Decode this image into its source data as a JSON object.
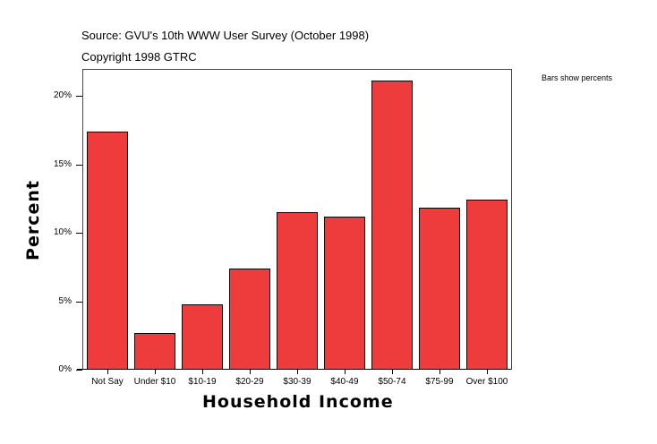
{
  "header": {
    "source": "Source: GVU's 10th WWW User Survey (October 1998)",
    "copyright": "Copyright 1998 GTRC",
    "note": "Bars show percents"
  },
  "colors": {
    "bar": "#ee3b3b",
    "bar_border": "#000000",
    "frame": "#444444"
  },
  "chart_data": {
    "type": "bar",
    "title": "Source: GVU's 10th WWW User Survey (October 1998)",
    "subtitle": "Copyright 1998 GTRC",
    "annotation": "Bars show percents",
    "xlabel": "Household Income",
    "ylabel": "Percent",
    "categories": [
      "Not Say",
      "Under $10",
      "$10-19",
      "$20-29",
      "$30-39",
      "$40-49",
      "$50-74",
      "$75-99",
      "Over $100"
    ],
    "values": [
      17.4,
      2.7,
      4.8,
      7.4,
      11.5,
      11.2,
      21.1,
      11.8,
      12.4
    ],
    "ylim": [
      0,
      22
    ],
    "yticks": [
      "0%",
      "5%",
      "10%",
      "15%",
      "20%"
    ],
    "grid": false,
    "legend": null
  }
}
